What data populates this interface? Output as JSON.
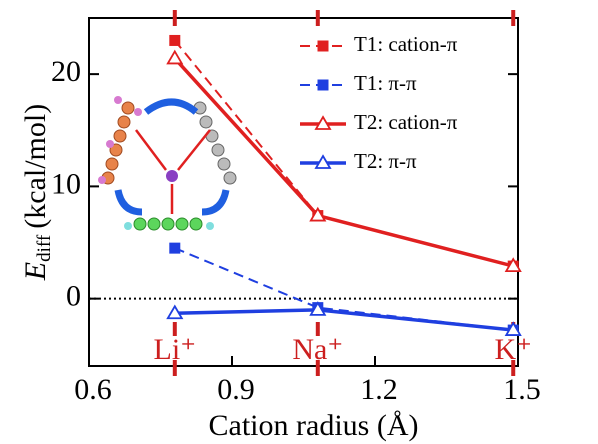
{
  "chart_data": {
    "type": "line",
    "x_label": "Cation radius (Å)",
    "y_label": {
      "symbol": "E",
      "subscript": "diff",
      "unit": "(kcal/mol)"
    },
    "xlim": [
      0.6,
      1.5
    ],
    "xticks": [
      {
        "value": 0.6,
        "label": "0.6"
      },
      {
        "value": 0.9,
        "label": "0.9"
      },
      {
        "value": 1.2,
        "label": "1.2"
      },
      {
        "value": 1.5,
        "label": "1.5"
      }
    ],
    "ylim": [
      -6,
      25
    ],
    "yticks": [
      0,
      10,
      20
    ],
    "zero_line": true,
    "ions": [
      {
        "label": "Li⁺",
        "x": 0.78
      },
      {
        "label": "Na⁺",
        "x": 1.08
      },
      {
        "label": "K⁺",
        "x": 1.49
      }
    ],
    "ion_color": "#cc1f1f",
    "x": [
      0.78,
      1.08,
      1.49
    ],
    "series": [
      {
        "name": "T1: cation-π",
        "color": "#e02020",
        "marker": "square",
        "dashed": true,
        "values": [
          23,
          7.4,
          2.9
        ]
      },
      {
        "name": "T1: π-π",
        "color": "#1f3fe0",
        "marker": "square",
        "dashed": true,
        "values": [
          4.5,
          -0.8,
          -2.8
        ]
      },
      {
        "name": "T2: cation-π",
        "color": "#e02020",
        "marker": "triangle",
        "dashed": false,
        "values": [
          21.4,
          7.4,
          2.9
        ]
      },
      {
        "name": "T2: π-π",
        "color": "#1f3fe0",
        "marker": "triangle",
        "dashed": false,
        "values": [
          -1.3,
          -1.0,
          -2.8
        ]
      }
    ]
  }
}
